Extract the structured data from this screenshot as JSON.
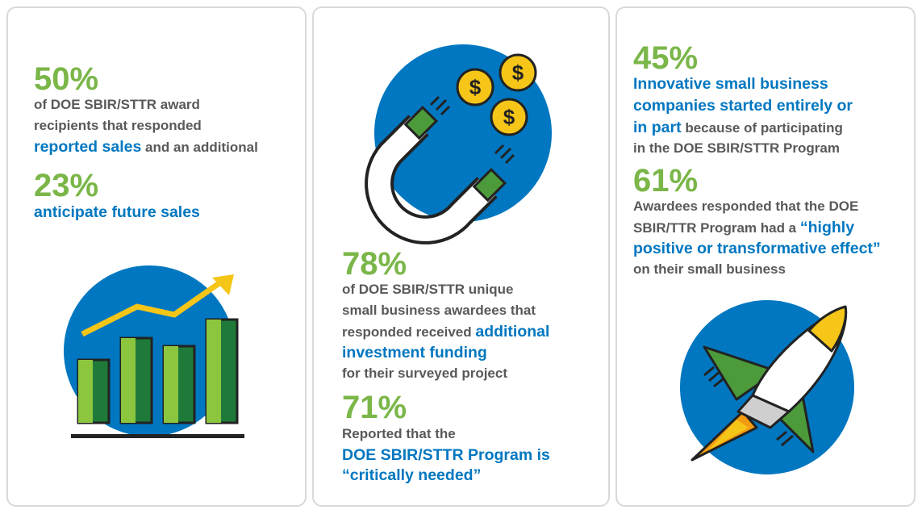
{
  "panel1": {
    "stat1": "50%",
    "text1_line1": "of DOE SBIR/STTR award",
    "text1_line2": "recipients that responded",
    "text1_highlight": "reported sales",
    "text1_tail": " and an additional",
    "stat2": "23%",
    "text2": "anticipate future sales",
    "icon": "bar-chart-trend-icon"
  },
  "panel2": {
    "icon": "magnet-dollar-icon",
    "stat1": "78%",
    "text1_line1": "of DOE SBIR/STTR unique",
    "text1_line2": "small business awardees that",
    "text1_line3_a": "responded received ",
    "text1_highlight_a": "additional",
    "text1_highlight_b": "investment funding",
    "text1_line5": "for their surveyed project",
    "stat2": "71%",
    "text2_line1": "Reported that the",
    "text2_highlight_a": "DOE SBIR/STTR Program is",
    "text2_highlight_b": "“critically needed”"
  },
  "panel3": {
    "stat1": "45%",
    "text1_highlight_a": "Innovative small business",
    "text1_highlight_b": "companies started entirely or",
    "text1_highlight_c": "in part",
    "text1_tail": " because of participating",
    "text1_line4": "in the DOE SBIR/STTR Program",
    "stat2": "61%",
    "text2_line1": "Awardees responded that the DOE",
    "text2_line2_a": "SBIR/TTR Program had a ",
    "text2_highlight_a": "“highly",
    "text2_highlight_b": "positive or transformative effect”",
    "text2_line4": "on their small business",
    "icon": "rocket-icon"
  },
  "colors": {
    "green": "#7ab648",
    "blue": "#0077c0",
    "gray": "#58595b",
    "gold": "#f5c518"
  }
}
